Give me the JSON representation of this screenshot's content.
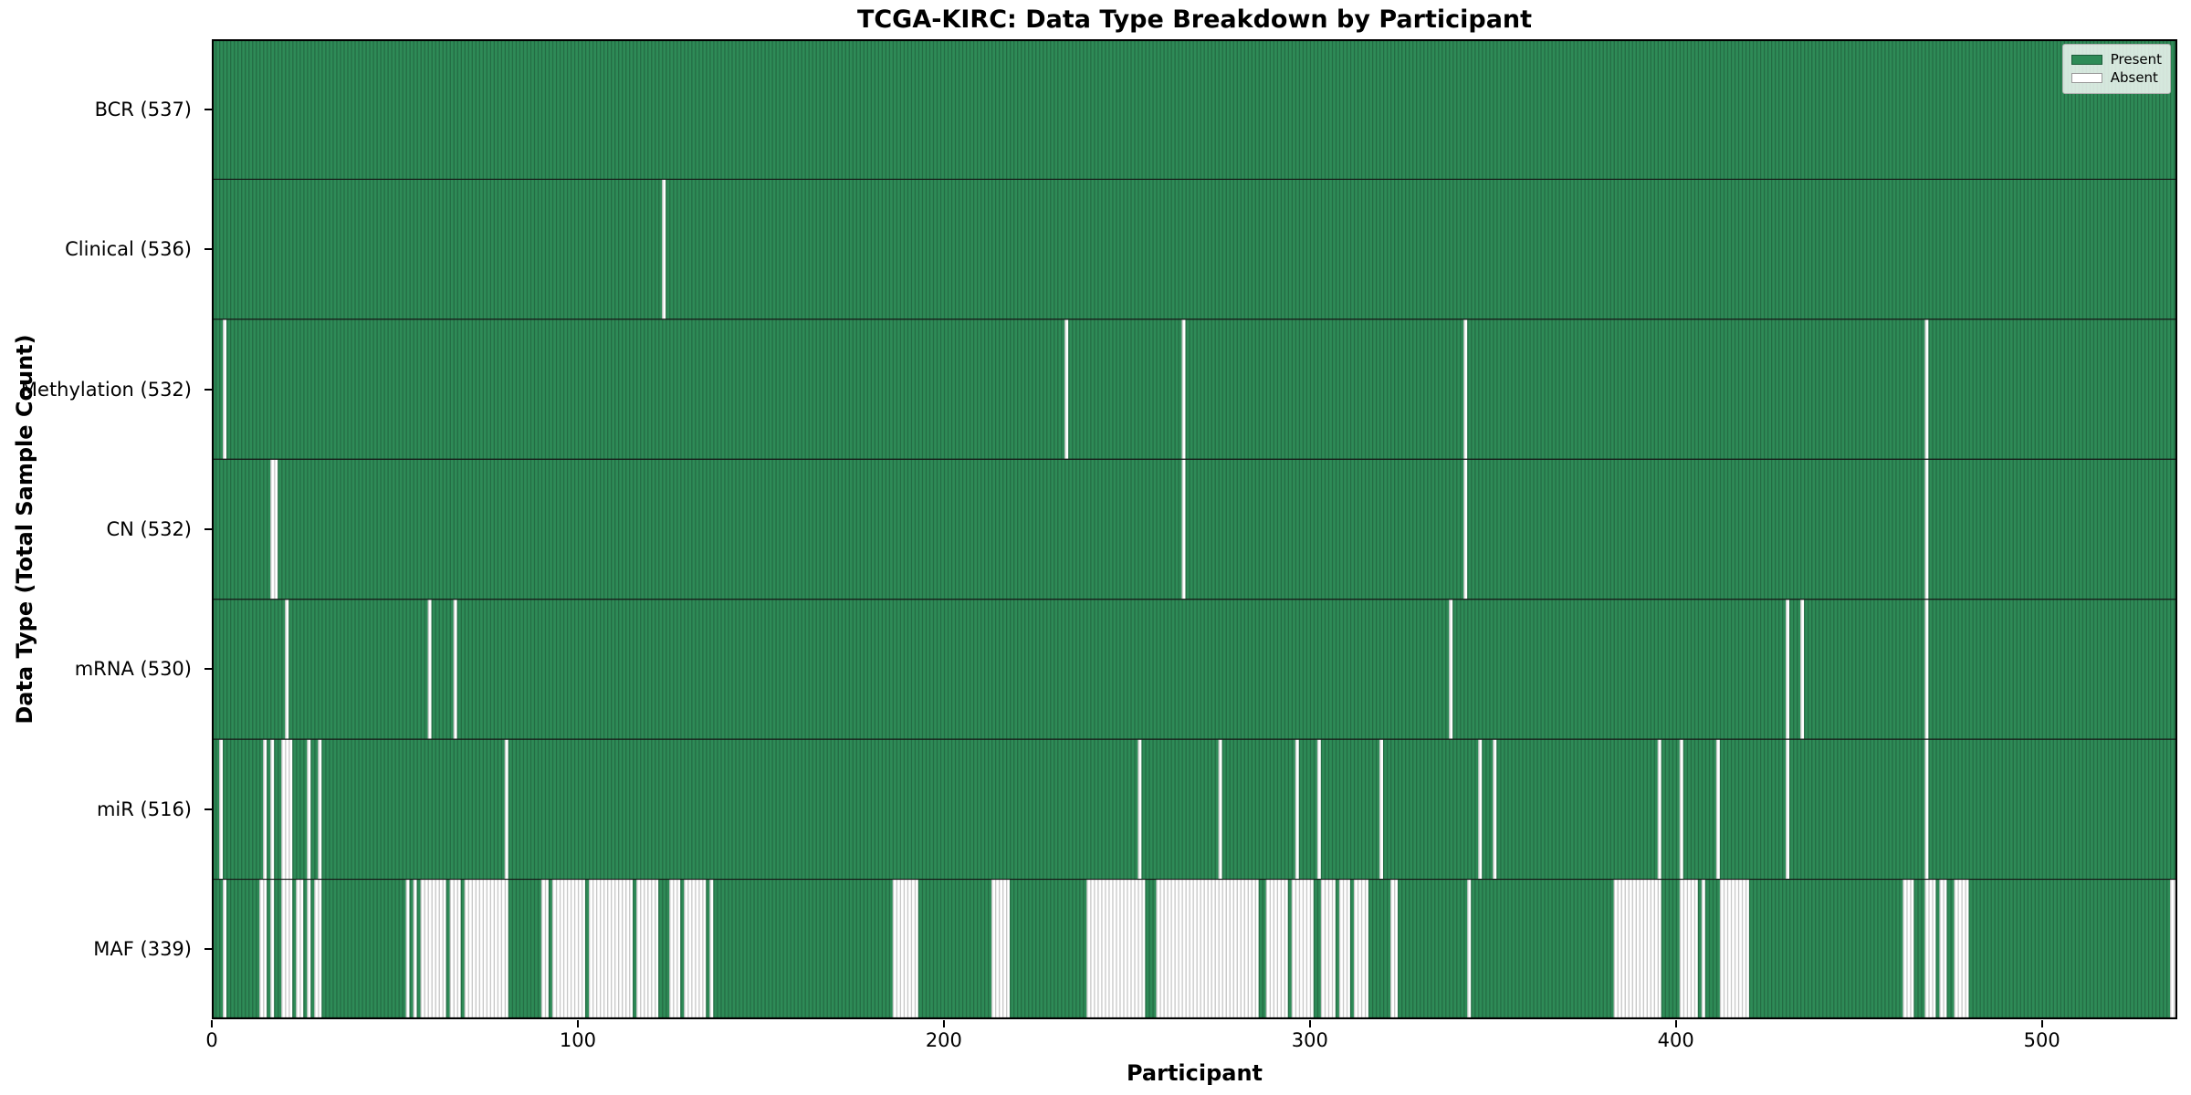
{
  "title": "TCGA-KIRC: Data Type Breakdown by Participant",
  "axes": {
    "x_label": "Participant",
    "y_label": "Data Type (Total Sample Count)",
    "x_ticks": [
      0,
      100,
      200,
      300,
      400,
      500
    ]
  },
  "legend": {
    "items": [
      {
        "label": "Present",
        "color": "#2e8b57"
      },
      {
        "label": "Absent",
        "color": "#ffffff"
      }
    ]
  },
  "colors": {
    "present": "#2e8b57",
    "absent": "#ffffff",
    "bar_edge": "rgba(0,0,0,0.22)",
    "row_separator": "#151515",
    "plot_border": "#000000"
  },
  "chart_data": {
    "type": "heatmap",
    "title": "TCGA-KIRC: Data Type Breakdown by Participant",
    "xlabel": "Participant",
    "ylabel": "Data Type (Total Sample Count)",
    "x_range": [
      0,
      537
    ],
    "x_ticks": [
      0,
      100,
      200,
      300,
      400,
      500
    ],
    "n_participants": 537,
    "legend": [
      "Present",
      "Absent"
    ],
    "legend_position": "upper right",
    "rows": [
      {
        "name": "BCR",
        "label": "BCR (537)",
        "present_count": 537,
        "absent": []
      },
      {
        "name": "Clinical",
        "label": "Clinical (536)",
        "present_count": 536,
        "absent": [
          123
        ]
      },
      {
        "name": "Methylation",
        "label": "Methylation (532)",
        "present_count": 532,
        "absent": [
          3,
          233,
          265,
          342,
          468
        ]
      },
      {
        "name": "CN",
        "label": "CN (532)",
        "present_count": 532,
        "absent": [
          [
            16,
            17
          ],
          265,
          342,
          468
        ]
      },
      {
        "name": "mRNA",
        "label": "mRNA (530)",
        "present_count": 530,
        "absent": [
          20,
          59,
          66,
          338,
          430,
          434,
          468
        ]
      },
      {
        "name": "miR",
        "label": "miR (516)",
        "present_count": 516,
        "absent": [
          2,
          14,
          16,
          [
            19,
            21
          ],
          26,
          29,
          80,
          253,
          275,
          296,
          302,
          319,
          346,
          350,
          395,
          401,
          411,
          430,
          468
        ]
      },
      {
        "name": "MAF",
        "label": "MAF (339)",
        "present_count": 339,
        "absent": [
          3,
          [
            13,
            14
          ],
          16,
          [
            19,
            21
          ],
          [
            23,
            24
          ],
          26,
          [
            28,
            29
          ],
          53,
          55,
          [
            57,
            63
          ],
          [
            65,
            67
          ],
          [
            69,
            80
          ],
          [
            90,
            91
          ],
          [
            93,
            101
          ],
          [
            103,
            114
          ],
          [
            116,
            121
          ],
          [
            125,
            127
          ],
          [
            129,
            134
          ],
          136,
          [
            186,
            192
          ],
          [
            213,
            217
          ],
          [
            239,
            254
          ],
          [
            258,
            285
          ],
          [
            288,
            293
          ],
          [
            295,
            300
          ],
          [
            303,
            306
          ],
          [
            308,
            310
          ],
          [
            312,
            315
          ],
          [
            322,
            323
          ],
          343,
          [
            383,
            395
          ],
          [
            401,
            405
          ],
          407,
          [
            412,
            419
          ],
          [
            462,
            464
          ],
          [
            468,
            470
          ],
          [
            472,
            473
          ],
          [
            476,
            479
          ],
          [
            535,
            536
          ]
        ]
      }
    ]
  }
}
